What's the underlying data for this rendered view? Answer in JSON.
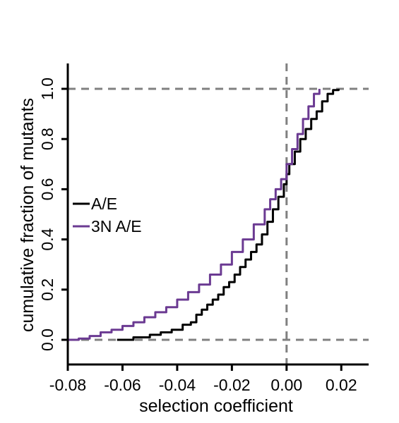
{
  "chart_data": {
    "type": "line",
    "step": true,
    "xlabel": "selection coefficient",
    "ylabel": "cumulative fraction of mutants",
    "xlim": [
      -0.08,
      0.03
    ],
    "ylim": [
      0.0,
      1.0
    ],
    "xticks": [
      -0.08,
      -0.06,
      -0.04,
      -0.02,
      0.0,
      0.02
    ],
    "xtick_labels": [
      "-0.08",
      "-0.06",
      "-0.04",
      "-0.02",
      "0.00",
      "0.02"
    ],
    "yticks": [
      0.0,
      0.2,
      0.4,
      0.6,
      0.8,
      1.0
    ],
    "ytick_labels": [
      "0.0",
      "0.2",
      "0.4",
      "0.6",
      "0.8",
      "1.0"
    ],
    "reference_lines": [
      {
        "orientation": "horizontal",
        "value": 0.0,
        "style": "dashed",
        "color": "#808080"
      },
      {
        "orientation": "horizontal",
        "value": 1.0,
        "style": "dashed",
        "color": "#808080"
      },
      {
        "orientation": "vertical",
        "value": 0.0,
        "style": "dashed",
        "color": "#808080"
      }
    ],
    "legend": {
      "placement": "left-middle"
    },
    "series": [
      {
        "name": "A/E",
        "color": "#000000",
        "x": [
          -0.062,
          -0.056,
          -0.05,
          -0.046,
          -0.042,
          -0.038,
          -0.035,
          -0.033,
          -0.031,
          -0.029,
          -0.027,
          -0.025,
          -0.023,
          -0.021,
          -0.019,
          -0.017,
          -0.015,
          -0.013,
          -0.011,
          -0.009,
          -0.007,
          -0.005,
          -0.003,
          -0.001,
          0.0,
          0.001,
          0.003,
          0.005,
          0.007,
          0.009,
          0.011,
          0.013,
          0.015,
          0.017,
          0.019
        ],
        "y": [
          0.0,
          0.01,
          0.02,
          0.03,
          0.04,
          0.06,
          0.07,
          0.1,
          0.12,
          0.14,
          0.16,
          0.18,
          0.21,
          0.23,
          0.26,
          0.29,
          0.32,
          0.35,
          0.38,
          0.42,
          0.47,
          0.52,
          0.57,
          0.62,
          0.66,
          0.7,
          0.75,
          0.8,
          0.84,
          0.88,
          0.91,
          0.95,
          0.98,
          0.995,
          1.0
        ]
      },
      {
        "name": "3N A/E",
        "color": "#6b3a92",
        "x": [
          -0.08,
          -0.076,
          -0.072,
          -0.068,
          -0.064,
          -0.06,
          -0.056,
          -0.052,
          -0.048,
          -0.044,
          -0.04,
          -0.036,
          -0.032,
          -0.028,
          -0.024,
          -0.02,
          -0.016,
          -0.012,
          -0.008,
          -0.006,
          -0.004,
          -0.002,
          0.0,
          0.002,
          0.004,
          0.006,
          0.008,
          0.01,
          0.012
        ],
        "y": [
          0.0,
          0.005,
          0.015,
          0.03,
          0.04,
          0.055,
          0.07,
          0.09,
          0.11,
          0.13,
          0.16,
          0.19,
          0.22,
          0.26,
          0.3,
          0.35,
          0.4,
          0.46,
          0.52,
          0.56,
          0.6,
          0.64,
          0.7,
          0.76,
          0.82,
          0.88,
          0.93,
          0.98,
          1.0
        ]
      }
    ]
  }
}
